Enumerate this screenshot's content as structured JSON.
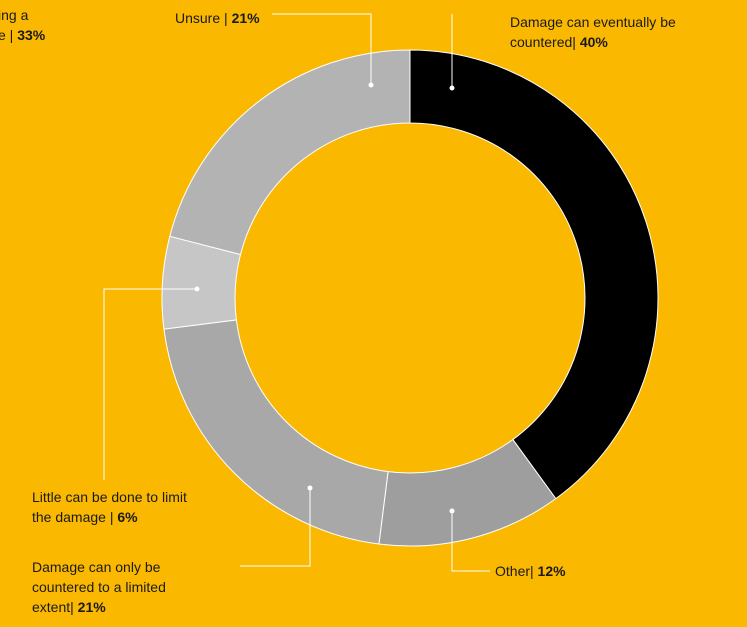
{
  "chart_data": {
    "type": "pie",
    "style": "donut",
    "slices": [
      {
        "label": "Damage can eventually be countered",
        "label_lines": [
          "Damage can eventually be",
          "countered"
        ],
        "separator": "| ",
        "value": 40,
        "value_text": "40%",
        "color": "#000000"
      },
      {
        "label": "Other",
        "label_lines": [
          "Other"
        ],
        "separator": "| ",
        "value": 12,
        "value_text": "12%",
        "color": "#9E9E9E"
      },
      {
        "label": "Damage can only be countered to a limited extent",
        "label_lines": [
          "Damage can only be",
          "countered to a limited",
          "extent"
        ],
        "separator": "| ",
        "value": 21,
        "value_text": "21%",
        "color": "#A8A8A8"
      },
      {
        "label": "Little can be done to limit the damage",
        "label_lines": [
          "Little can be done to limit",
          "the damage"
        ],
        "separator": " | ",
        "value": 6,
        "value_text": "6%",
        "color": "#C6C6C6"
      },
      {
        "label": "Unsure",
        "label_lines": [
          "Unsure"
        ],
        "separator": " | ",
        "value": 21,
        "value_text": "21%",
        "color": "#B3B3B3"
      }
    ],
    "clipped_label": {
      "lines": [
        "ing a",
        "e"
      ],
      "separator": " | ",
      "value_text": "33%"
    },
    "title": "",
    "legend": "none"
  }
}
